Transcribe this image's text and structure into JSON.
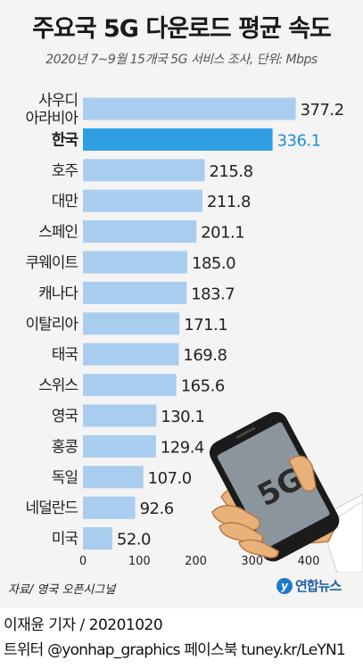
{
  "title": "주요국 5G 다운로드 평균 속도",
  "subtitle": "2020년 7~9월 15개국 5G 서비스 조사, 단위: Mbps",
  "source": "자료/ 영국 오픈시그널",
  "logo_text": "연합뉴스",
  "byline": "이재윤 기자 / 20201020",
  "social": "트위터 @yonhap_graphics 페이스북 tuney.kr/LeYN1",
  "colors": {
    "bar": "#a9cdef",
    "highlight_bar": "#2f9de2",
    "highlight_text": "#1f8fd6"
  },
  "chart_data": {
    "type": "bar",
    "orientation": "horizontal",
    "title": "주요국 5G 다운로드 평균 속도",
    "subtitle": "2020년 7~9월 15개국 5G 서비스 조사, 단위: Mbps",
    "unit": "Mbps",
    "categories": [
      [
        "사우디",
        "아라비아"
      ],
      [
        "한국"
      ],
      [
        "호주"
      ],
      [
        "대만"
      ],
      [
        "스페인"
      ],
      [
        "쿠웨이트"
      ],
      [
        "캐나다"
      ],
      [
        "이탈리아"
      ],
      [
        "태국"
      ],
      [
        "스위스"
      ],
      [
        "영국"
      ],
      [
        "홍콩"
      ],
      [
        "독일"
      ],
      [
        "네덜란드"
      ],
      [
        "미국"
      ]
    ],
    "values": [
      377.2,
      336.1,
      215.8,
      211.8,
      201.1,
      185.0,
      183.7,
      171.1,
      169.8,
      165.6,
      130.1,
      129.4,
      107.0,
      92.6,
      52.0
    ],
    "value_labels": [
      "377.2",
      "336.1",
      "215.8",
      "211.8",
      "201.1",
      "185.0",
      "183.7",
      "171.1",
      "169.8",
      "165.6",
      "130.1",
      "129.4",
      "107.0",
      "92.6",
      "52.0"
    ],
    "highlight": "한국",
    "xlim": [
      0,
      400
    ],
    "xticks": [
      0,
      100,
      200,
      300,
      400
    ],
    "xtick_labels": [
      "0",
      "100",
      "200",
      "300",
      "400"
    ],
    "grid": false,
    "legend": "none"
  }
}
